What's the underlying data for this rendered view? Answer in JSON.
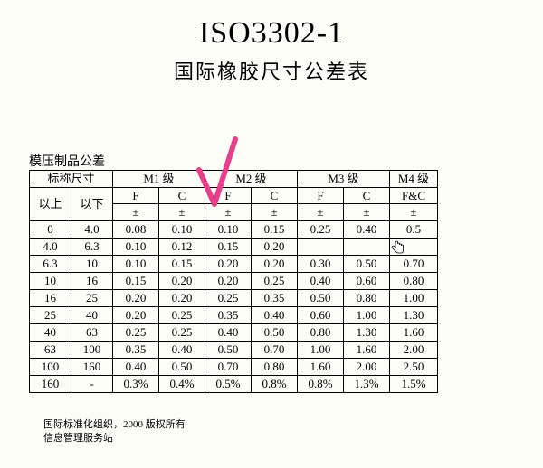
{
  "title": "ISO3302-1",
  "subtitle": "国际橡胶尺寸公差表",
  "section_label": "模压制品公差",
  "header": {
    "nominal": "标称尺寸",
    "m1": "M1 级",
    "m2": "M2 级",
    "m3": "M3 级",
    "m4": "M4 级",
    "above": "以上",
    "below": "以下",
    "F": "F",
    "C": "C",
    "FC": "F&C",
    "pm": "±"
  },
  "rows": [
    {
      "a": "0",
      "b": "4.0",
      "m1f": "0.08",
      "m1c": "0.10",
      "m2f": "0.10",
      "m2c": "0.15",
      "m3f": "0.25",
      "m3c": "0.40",
      "m4": "0.5"
    },
    {
      "a": "4.0",
      "b": "6.3",
      "m1f": "0.10",
      "m1c": "0.12",
      "m2f": "0.15",
      "m2c": "0.20",
      "m3f": "",
      "m3c": "",
      "m4": ""
    },
    {
      "a": "6.3",
      "b": "10",
      "m1f": "0.10",
      "m1c": "0.15",
      "m2f": "0.20",
      "m2c": "0.20",
      "m3f": "0.30",
      "m3c": "0.50",
      "m4": "0.70"
    },
    {
      "a": "10",
      "b": "16",
      "m1f": "0.15",
      "m1c": "0.20",
      "m2f": "0.20",
      "m2c": "0.25",
      "m3f": "0.40",
      "m3c": "0.60",
      "m4": "0.80"
    },
    {
      "a": "16",
      "b": "25",
      "m1f": "0.20",
      "m1c": "0.20",
      "m2f": "0.25",
      "m2c": "0.35",
      "m3f": "0.50",
      "m3c": "0.80",
      "m4": "1.00"
    },
    {
      "a": "25",
      "b": "40",
      "m1f": "0.20",
      "m1c": "0.25",
      "m2f": "0.35",
      "m2c": "0.40",
      "m3f": "0.60",
      "m3c": "1.00",
      "m4": "1.30"
    },
    {
      "a": "40",
      "b": "63",
      "m1f": "0.25",
      "m1c": "0.25",
      "m2f": "0.40",
      "m2c": "0.50",
      "m3f": "0.80",
      "m3c": "1.30",
      "m4": "1.60"
    },
    {
      "a": "63",
      "b": "100",
      "m1f": "0.35",
      "m1c": "0.40",
      "m2f": "0.50",
      "m2c": "0.70",
      "m3f": "1.00",
      "m3c": "1.60",
      "m4": "2.00"
    },
    {
      "a": "100",
      "b": "160",
      "m1f": "0.40",
      "m1c": "0.50",
      "m2f": "0.70",
      "m2c": "0.80",
      "m3f": "1.60",
      "m3c": "2.00",
      "m4": "2.50"
    },
    {
      "a": "160",
      "b": "-",
      "m1f": "0.3%",
      "m1c": "0.4%",
      "m2f": "0.5%",
      "m2c": "0.8%",
      "m3f": "0.8%",
      "m3c": "1.3%",
      "m4": "1.5%"
    }
  ],
  "footer": {
    "line1": "国际标准化组织，2000 版权所有",
    "line2": "信息管理服务站"
  },
  "checkmark_color": "#e83e8c",
  "background_color": "#fdfdf8"
}
